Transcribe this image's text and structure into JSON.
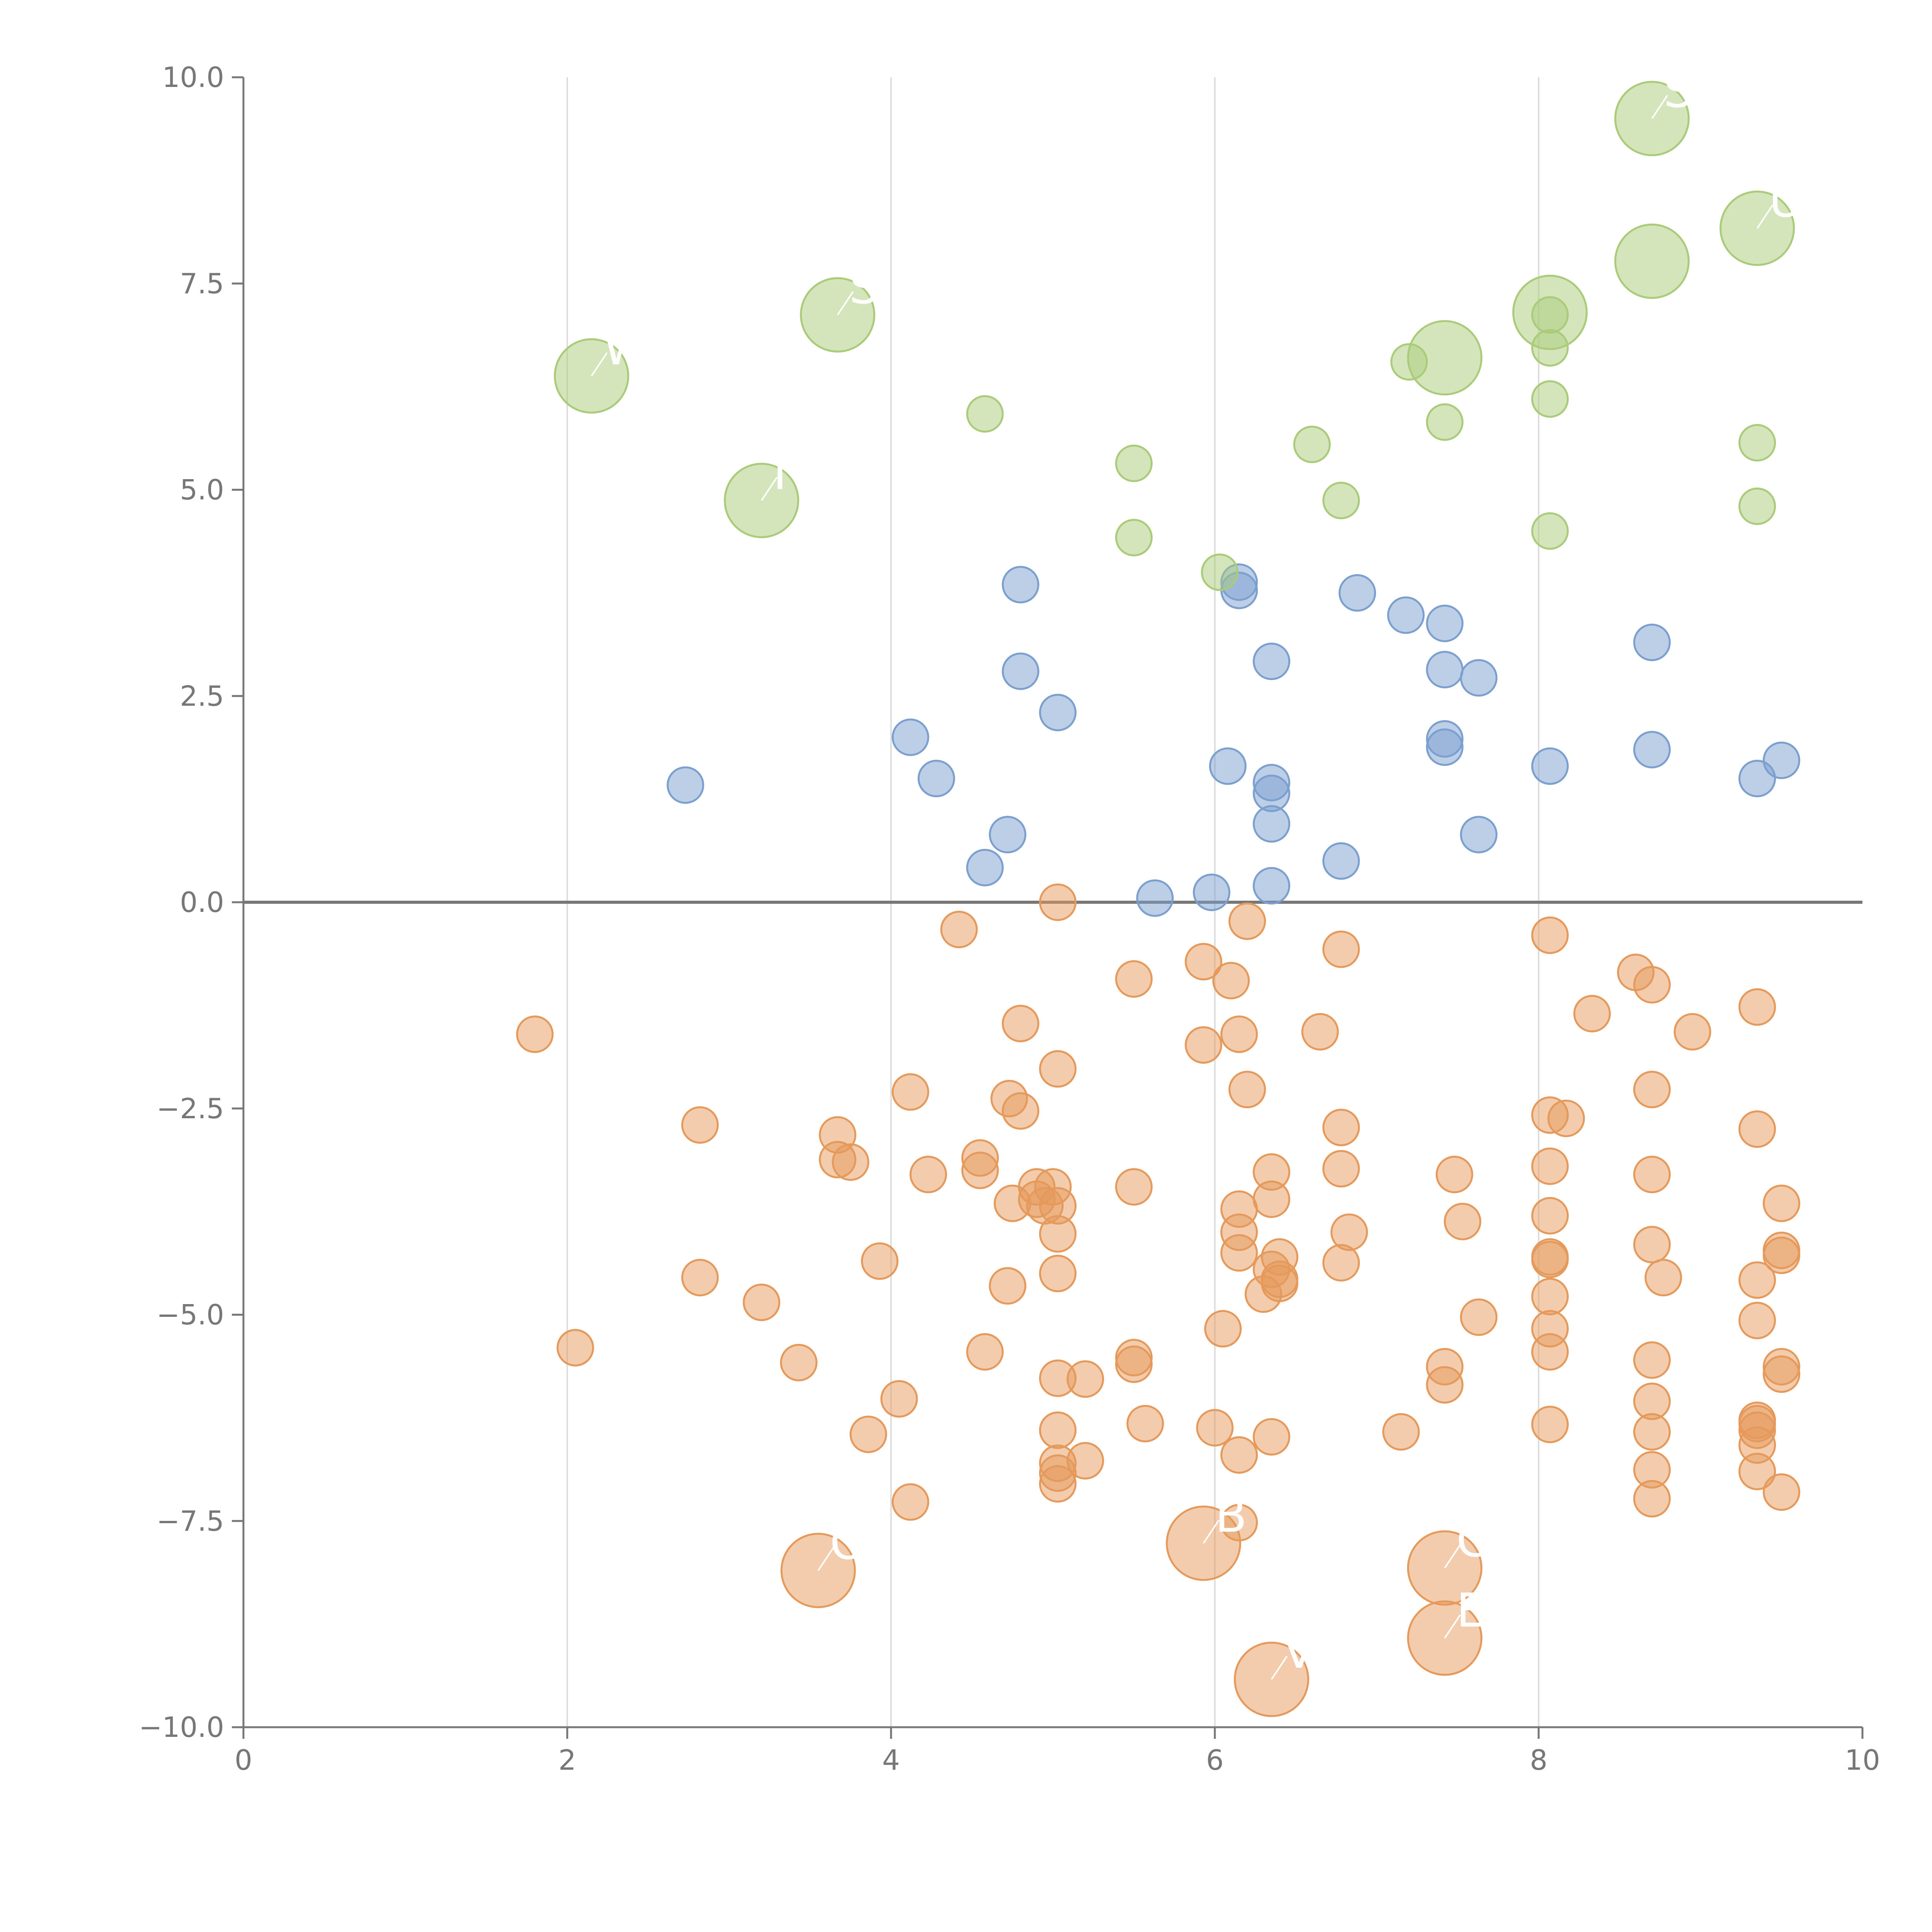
{
  "chart_data": {
    "type": "scatter",
    "title": "",
    "xlabel": "",
    "ylabel": "",
    "xlim": [
      0,
      10
    ],
    "ylim": [
      -10,
      10
    ],
    "x_ticks": [
      {
        "value": 0,
        "label": "0"
      },
      {
        "value": 2,
        "label": "2"
      },
      {
        "value": 4,
        "label": "4"
      },
      {
        "value": 6,
        "label": "6"
      },
      {
        "value": 8,
        "label": "8"
      },
      {
        "value": 10,
        "label": "10"
      }
    ],
    "y_ticks": [
      {
        "value": 10,
        "label": "10.0"
      },
      {
        "value": 7.5,
        "label": "7.5"
      },
      {
        "value": 5,
        "label": "5.0"
      },
      {
        "value": 2.5,
        "label": "2.5"
      },
      {
        "value": 0,
        "label": "0.0"
      },
      {
        "value": -2.5,
        "label": "−2.5"
      },
      {
        "value": -5,
        "label": "−5.0"
      },
      {
        "value": -7.5,
        "label": "−7.5"
      },
      {
        "value": -10,
        "label": "−10.0"
      }
    ],
    "vertical_gridlines_at": [
      2,
      4,
      6,
      8
    ],
    "zero_line": 0,
    "colors": {
      "blue": "#7b9fcf",
      "orange": "#e59a5c",
      "green": "#a9cb7a",
      "axis": "#777777",
      "grid": "#dddddd",
      "zero": "#777777"
    },
    "series": [
      {
        "name": "blue",
        "color": "#7b9fcf",
        "points": [
          [
            2.73,
            1.42
          ],
          [
            4.12,
            2.0
          ],
          [
            4.28,
            1.5
          ],
          [
            4.58,
            0.42
          ],
          [
            4.72,
            0.82
          ],
          [
            4.8,
            3.85
          ],
          [
            4.8,
            2.8
          ],
          [
            5.03,
            2.3
          ],
          [
            5.63,
            0.05
          ],
          [
            5.98,
            0.12
          ],
          [
            6.08,
            1.65
          ],
          [
            6.15,
            3.88
          ],
          [
            6.15,
            3.78
          ],
          [
            6.35,
            2.92
          ],
          [
            6.35,
            1.45
          ],
          [
            6.35,
            1.32
          ],
          [
            6.35,
            0.95
          ],
          [
            6.35,
            0.2
          ],
          [
            6.78,
            0.5
          ],
          [
            6.88,
            3.75
          ],
          [
            7.18,
            3.48
          ],
          [
            7.42,
            3.38
          ],
          [
            7.42,
            2.82
          ],
          [
            7.42,
            1.98
          ],
          [
            7.42,
            1.88
          ],
          [
            7.63,
            2.72
          ],
          [
            7.63,
            0.82
          ],
          [
            8.07,
            1.65
          ],
          [
            8.7,
            3.15
          ],
          [
            8.7,
            1.85
          ],
          [
            9.35,
            1.5
          ],
          [
            9.5,
            1.72
          ]
        ]
      },
      {
        "name": "green",
        "color": "#a9cb7a",
        "points": [
          [
            4.58,
            5.92
          ],
          [
            5.5,
            5.32
          ],
          [
            5.5,
            4.42
          ],
          [
            6.03,
            4.0
          ],
          [
            6.6,
            5.55
          ],
          [
            6.78,
            4.87
          ],
          [
            7.2,
            6.55
          ],
          [
            7.42,
            5.82
          ],
          [
            8.07,
            7.12
          ],
          [
            8.07,
            6.72
          ],
          [
            8.07,
            6.1
          ],
          [
            8.07,
            4.5
          ],
          [
            9.35,
            5.57
          ],
          [
            9.35,
            4.8
          ]
        ]
      },
      {
        "name": "orange",
        "color": "#e59a5c",
        "points": [
          [
            1.8,
            -1.6
          ],
          [
            2.05,
            -5.4
          ],
          [
            2.82,
            -2.7
          ],
          [
            2.82,
            -4.55
          ],
          [
            3.2,
            -4.85
          ],
          [
            3.43,
            -5.58
          ],
          [
            3.67,
            -2.82
          ],
          [
            3.67,
            -3.12
          ],
          [
            3.75,
            -3.15
          ],
          [
            3.86,
            -6.45
          ],
          [
            3.93,
            -4.35
          ],
          [
            4.05,
            -6.02
          ],
          [
            4.12,
            -2.3
          ],
          [
            4.12,
            -7.27
          ],
          [
            4.23,
            -3.3
          ],
          [
            4.42,
            -0.33
          ],
          [
            4.55,
            -3.1
          ],
          [
            4.55,
            -3.25
          ],
          [
            4.58,
            -5.45
          ],
          [
            4.72,
            -4.65
          ],
          [
            4.73,
            -2.38
          ],
          [
            4.75,
            -3.65
          ],
          [
            4.8,
            -1.47
          ],
          [
            4.8,
            -2.53
          ],
          [
            4.9,
            -3.45
          ],
          [
            4.9,
            -3.6
          ],
          [
            4.95,
            -3.68
          ],
          [
            5.0,
            -3.45
          ],
          [
            5.03,
            0.0
          ],
          [
            5.03,
            -2.02
          ],
          [
            5.03,
            -3.68
          ],
          [
            5.03,
            -4.02
          ],
          [
            5.03,
            -4.5
          ],
          [
            5.03,
            -5.77
          ],
          [
            5.03,
            -6.4
          ],
          [
            5.03,
            -6.8
          ],
          [
            5.03,
            -6.92
          ],
          [
            5.03,
            -7.05
          ],
          [
            5.2,
            -5.78
          ],
          [
            5.2,
            -6.77
          ],
          [
            5.5,
            -0.93
          ],
          [
            5.5,
            -3.45
          ],
          [
            5.5,
            -5.52
          ],
          [
            5.5,
            -5.6
          ],
          [
            5.57,
            -6.32
          ],
          [
            5.93,
            -0.72
          ],
          [
            5.93,
            -1.73
          ],
          [
            6.0,
            -6.37
          ],
          [
            6.05,
            -5.17
          ],
          [
            6.1,
            -0.95
          ],
          [
            6.15,
            -1.6
          ],
          [
            6.15,
            -3.72
          ],
          [
            6.15,
            -4.0
          ],
          [
            6.15,
            -4.25
          ],
          [
            6.15,
            -6.7
          ],
          [
            6.15,
            -7.52
          ],
          [
            6.2,
            -0.23
          ],
          [
            6.2,
            -2.27
          ],
          [
            6.3,
            -4.75
          ],
          [
            6.35,
            -3.27
          ],
          [
            6.35,
            -3.6
          ],
          [
            6.35,
            -4.45
          ],
          [
            6.35,
            -6.48
          ],
          [
            6.4,
            -4.3
          ],
          [
            6.4,
            -4.57
          ],
          [
            6.4,
            -4.62
          ],
          [
            6.65,
            -1.57
          ],
          [
            6.78,
            -0.57
          ],
          [
            6.78,
            -2.73
          ],
          [
            6.78,
            -3.23
          ],
          [
            6.78,
            -4.37
          ],
          [
            6.83,
            -4.0
          ],
          [
            7.15,
            -6.42
          ],
          [
            7.42,
            -5.63
          ],
          [
            7.42,
            -5.85
          ],
          [
            7.48,
            -3.3
          ],
          [
            7.53,
            -3.87
          ],
          [
            7.63,
            -5.03
          ],
          [
            8.07,
            -0.4
          ],
          [
            8.07,
            -2.58
          ],
          [
            8.07,
            -3.2
          ],
          [
            8.07,
            -3.8
          ],
          [
            8.07,
            -4.3
          ],
          [
            8.07,
            -4.33
          ],
          [
            8.07,
            -4.78
          ],
          [
            8.07,
            -5.17
          ],
          [
            8.07,
            -5.45
          ],
          [
            8.07,
            -6.33
          ],
          [
            8.17,
            -2.62
          ],
          [
            8.33,
            -1.35
          ],
          [
            8.6,
            -0.85
          ],
          [
            8.7,
            -1.0
          ],
          [
            8.7,
            -2.27
          ],
          [
            8.7,
            -3.3
          ],
          [
            8.7,
            -4.15
          ],
          [
            8.7,
            -5.55
          ],
          [
            8.7,
            -6.05
          ],
          [
            8.7,
            -6.42
          ],
          [
            8.7,
            -6.88
          ],
          [
            8.7,
            -7.23
          ],
          [
            8.77,
            -4.55
          ],
          [
            8.95,
            -1.57
          ],
          [
            9.35,
            -1.27
          ],
          [
            9.35,
            -2.75
          ],
          [
            9.35,
            -4.58
          ],
          [
            9.35,
            -5.07
          ],
          [
            9.35,
            -6.28
          ],
          [
            9.35,
            -6.32
          ],
          [
            9.35,
            -6.4
          ],
          [
            9.35,
            -6.58
          ],
          [
            9.35,
            -6.9
          ],
          [
            9.5,
            -3.65
          ],
          [
            9.5,
            -4.22
          ],
          [
            9.5,
            -4.28
          ],
          [
            9.5,
            -5.63
          ],
          [
            9.5,
            -5.72
          ],
          [
            9.5,
            -7.15
          ]
        ]
      }
    ],
    "highlighted": [
      {
        "group": "green",
        "x": 2.15,
        "y": 6.38,
        "label": "W"
      },
      {
        "group": "green",
        "x": 3.2,
        "y": 4.87,
        "label": "I"
      },
      {
        "group": "green",
        "x": 3.67,
        "y": 7.12,
        "label": "S"
      },
      {
        "group": "green",
        "x": 7.42,
        "y": 6.6,
        "label": ""
      },
      {
        "group": "green",
        "x": 8.07,
        "y": 7.15,
        "label": ""
      },
      {
        "group": "green",
        "x": 8.7,
        "y": 9.5,
        "label": "STM"
      },
      {
        "group": "green",
        "x": 8.7,
        "y": 7.77,
        "label": ""
      },
      {
        "group": "green",
        "x": 9.35,
        "y": 8.17,
        "label": "UN"
      },
      {
        "group": "orange",
        "x": 3.55,
        "y": -8.1,
        "label": "O"
      },
      {
        "group": "orange",
        "x": 5.93,
        "y": -7.77,
        "label": "B"
      },
      {
        "group": "orange",
        "x": 6.35,
        "y": -9.42,
        "label": "V"
      },
      {
        "group": "orange",
        "x": 7.42,
        "y": -8.07,
        "label": "C"
      },
      {
        "group": "orange",
        "x": 7.42,
        "y": -8.92,
        "label": "EX"
      }
    ]
  }
}
